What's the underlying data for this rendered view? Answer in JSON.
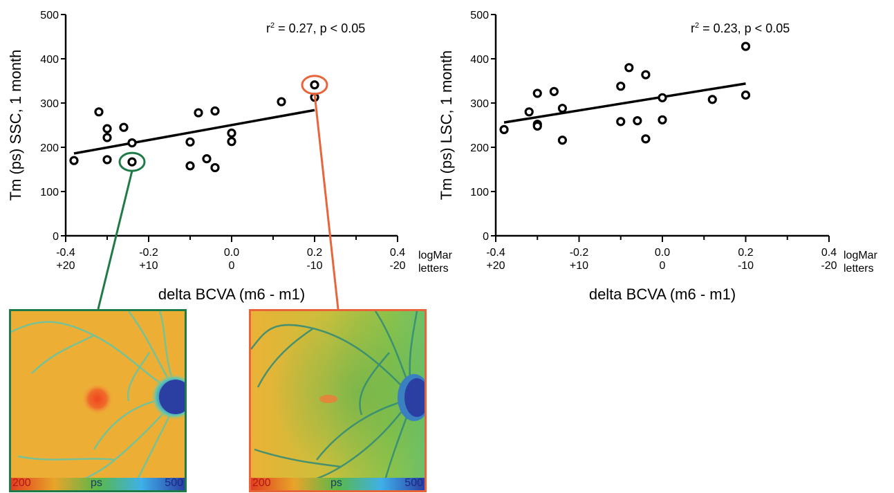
{
  "chart_data": [
    {
      "type": "scatter",
      "annotation": "r² = 0.27, p < 0.05",
      "annotation_main": "= 0.27, p < 0.05",
      "annotation_r": "r",
      "annotation_sup": "2",
      "ylabel": "Tm (ps) SSC, 1 month",
      "xlabel": "delta BCVA (m6 - m1)",
      "xlim": [
        -0.4,
        0.4
      ],
      "ylim": [
        0,
        500
      ],
      "x_ticks": [
        "-0.4",
        "-0.2",
        "0.0",
        "0.2",
        "0.4"
      ],
      "x_ticks_letters": [
        "+20",
        "+10",
        "0",
        "-10",
        "-20"
      ],
      "y_ticks": [
        "0",
        "100",
        "200",
        "300",
        "400",
        "500"
      ],
      "unit_labels": [
        "logMar",
        "letters"
      ],
      "points": [
        {
          "x": -0.38,
          "y": 170
        },
        {
          "x": -0.32,
          "y": 280
        },
        {
          "x": -0.3,
          "y": 242
        },
        {
          "x": -0.3,
          "y": 222
        },
        {
          "x": -0.3,
          "y": 172
        },
        {
          "x": -0.26,
          "y": 245
        },
        {
          "x": -0.24,
          "y": 210
        },
        {
          "x": -0.24,
          "y": 167
        },
        {
          "x": -0.1,
          "y": 212
        },
        {
          "x": -0.1,
          "y": 158
        },
        {
          "x": -0.08,
          "y": 278
        },
        {
          "x": -0.06,
          "y": 174
        },
        {
          "x": -0.04,
          "y": 282
        },
        {
          "x": -0.04,
          "y": 154
        },
        {
          "x": 0.0,
          "y": 232
        },
        {
          "x": 0.0,
          "y": 213
        },
        {
          "x": 0.12,
          "y": 303
        },
        {
          "x": 0.2,
          "y": 341
        },
        {
          "x": 0.2,
          "y": 313
        }
      ],
      "fit_line": {
        "x": [
          -0.38,
          0.2
        ],
        "y": [
          186,
          284
        ]
      },
      "highlights": [
        {
          "x": -0.24,
          "y": 167,
          "color": "#1e7a46"
        },
        {
          "x": 0.2,
          "y": 341,
          "color": "#e8643a"
        }
      ]
    },
    {
      "type": "scatter",
      "annotation": "r² = 0.23, p < 0.05",
      "annotation_main": "= 0.23, p < 0.05",
      "annotation_r": "r",
      "annotation_sup": "2",
      "ylabel": "Tm (ps) LSC, 1 month",
      "xlabel": "delta BCVA (m6 - m1)",
      "xlim": [
        -0.4,
        0.4
      ],
      "ylim": [
        0,
        500
      ],
      "x_ticks": [
        "-0.4",
        "-0.2",
        "0.0",
        "0.2",
        "0.4"
      ],
      "x_ticks_letters": [
        "+20",
        "+10",
        "0",
        "-10",
        "-20"
      ],
      "y_ticks": [
        "0",
        "100",
        "200",
        "300",
        "400",
        "500"
      ],
      "unit_labels": [
        "logMar",
        "letters"
      ],
      "points": [
        {
          "x": -0.38,
          "y": 240
        },
        {
          "x": -0.32,
          "y": 280
        },
        {
          "x": -0.3,
          "y": 322
        },
        {
          "x": -0.3,
          "y": 252
        },
        {
          "x": -0.3,
          "y": 248
        },
        {
          "x": -0.26,
          "y": 326
        },
        {
          "x": -0.24,
          "y": 288
        },
        {
          "x": -0.24,
          "y": 216
        },
        {
          "x": -0.1,
          "y": 338
        },
        {
          "x": -0.1,
          "y": 258
        },
        {
          "x": -0.08,
          "y": 380
        },
        {
          "x": -0.06,
          "y": 260
        },
        {
          "x": -0.04,
          "y": 364
        },
        {
          "x": -0.04,
          "y": 219
        },
        {
          "x": 0.0,
          "y": 312
        },
        {
          "x": 0.0,
          "y": 262
        },
        {
          "x": 0.12,
          "y": 308
        },
        {
          "x": 0.2,
          "y": 428
        },
        {
          "x": 0.2,
          "y": 318
        }
      ],
      "fit_line": {
        "x": [
          -0.38,
          0.2
        ],
        "y": [
          256,
          344
        ]
      },
      "highlights": []
    }
  ],
  "insets": [
    {
      "scale_min": "200",
      "scale_unit": "ps",
      "scale_max": "500",
      "border_color": "#1e7a46"
    },
    {
      "scale_min": "200",
      "scale_unit": "ps",
      "scale_max": "500",
      "border_color": "#e8643a"
    }
  ]
}
